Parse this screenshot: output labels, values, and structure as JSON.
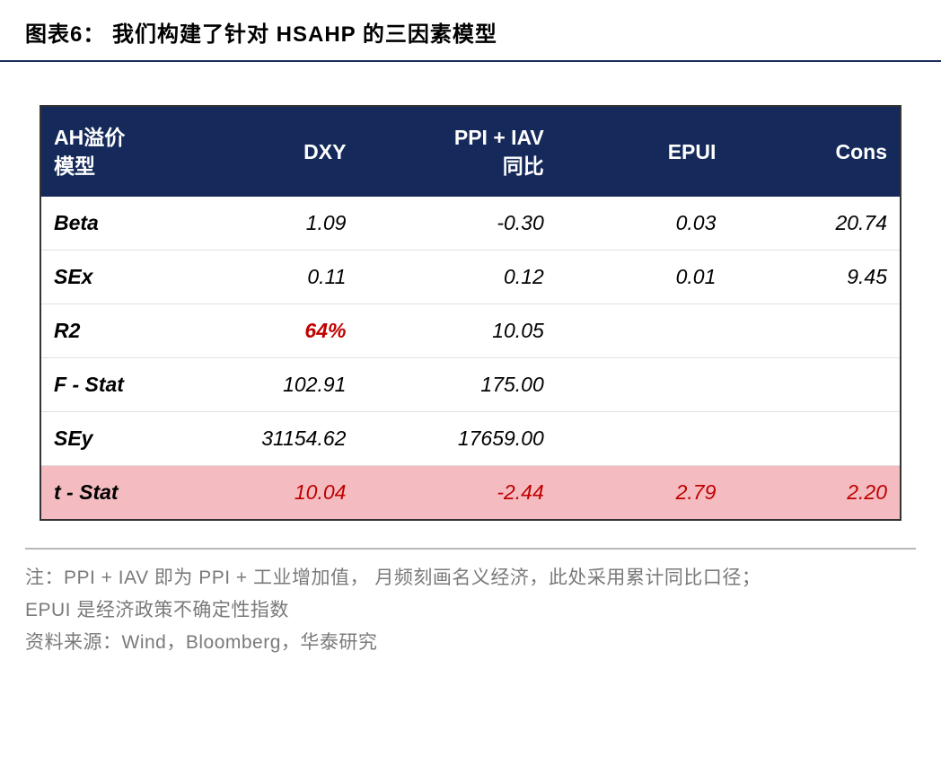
{
  "title": "图表6：  我们构建了针对 HSAHP 的三因素模型",
  "table": {
    "headers": [
      "AH溢价\n模型",
      "DXY",
      "PPI + IAV\n同比",
      "EPUI",
      "Cons"
    ],
    "rows": [
      {
        "label": "Beta",
        "values": [
          "1.09",
          "-0.30",
          "0.03",
          "20.74"
        ],
        "highlight_row": false
      },
      {
        "label": "SEx",
        "values": [
          "0.11",
          "0.12",
          "0.01",
          "9.45"
        ],
        "highlight_row": false
      },
      {
        "label": "R2",
        "values": [
          "64%",
          "10.05",
          "",
          ""
        ],
        "highlight_row": false,
        "highlight_cells": [
          0
        ]
      },
      {
        "label": "F - Stat",
        "values": [
          "102.91",
          "175.00",
          "",
          ""
        ],
        "highlight_row": false
      },
      {
        "label": "SEy",
        "values": [
          "31154.62",
          "17659.00",
          "",
          ""
        ],
        "highlight_row": false
      },
      {
        "label": "t - Stat",
        "values": [
          "10.04",
          "-2.44",
          "2.79",
          "2.20"
        ],
        "highlight_row": true
      }
    ],
    "header_bg": "#15295a",
    "header_color": "#ffffff",
    "highlight_bg": "#f4bcc1",
    "highlight_text": "#c00000",
    "border_color": "#333333",
    "row_border_color": "#e0e0e0",
    "cell_fontsize": 23,
    "font_style": "italic"
  },
  "footer": {
    "note1": "注：PPI + IAV 即为 PPI + 工业增加值， 月频刻画名义经济，此处采用累计同比口径；",
    "note2": "EPUI 是经济政策不确定性指数",
    "note3": "资料来源：Wind，Bloomberg，华泰研究",
    "divider_color": "#b8b8b8",
    "text_color": "#7a7a7a",
    "fontsize": 21
  }
}
